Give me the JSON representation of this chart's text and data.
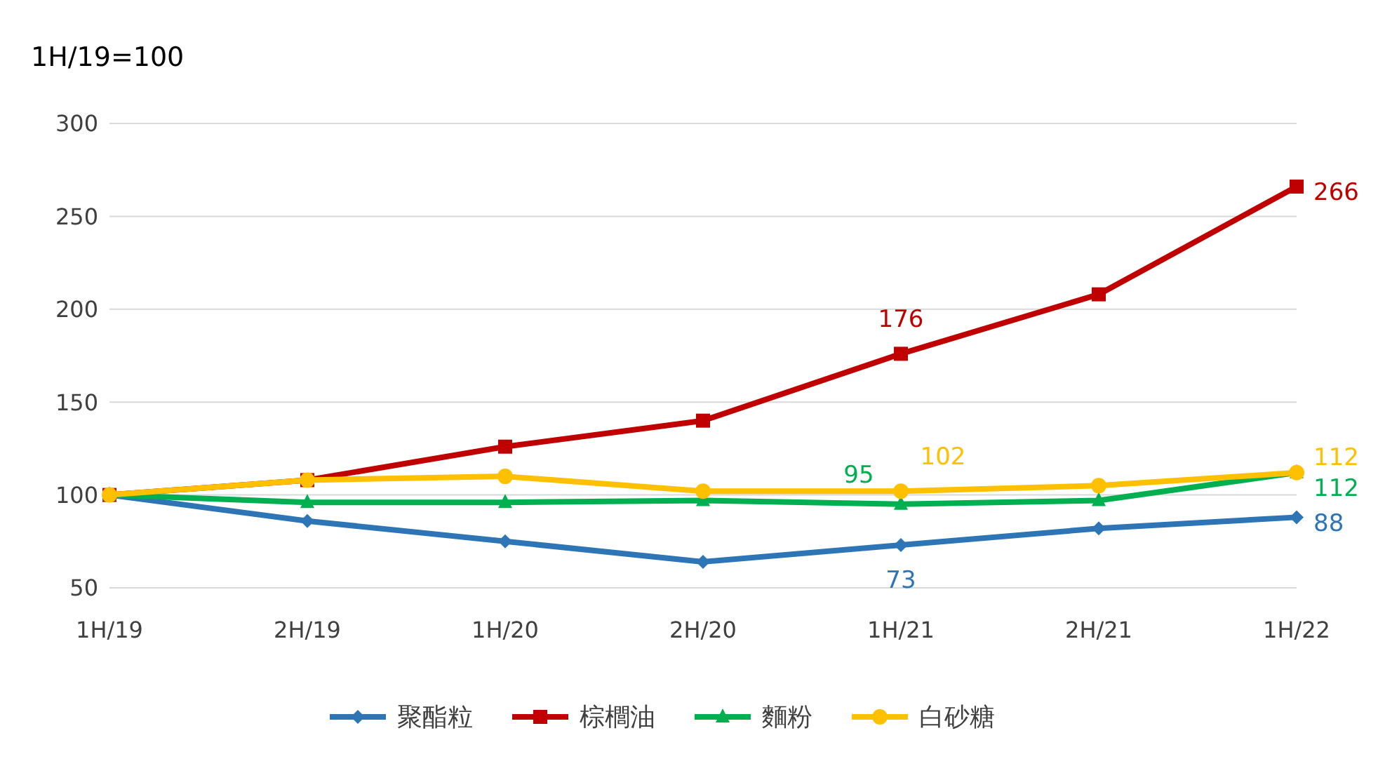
{
  "chart_data": {
    "type": "line",
    "ylabel": "1H/19=100",
    "categories": [
      "1H/19",
      "2H/19",
      "1H/20",
      "2H/20",
      "1H/21",
      "2H/21",
      "1H/22"
    ],
    "series": [
      {
        "name": "聚酯粒",
        "color": "#2e75b6",
        "marker": "diamond",
        "values": [
          100,
          86,
          75,
          64,
          73,
          82,
          88
        ],
        "value_labels": [
          null,
          null,
          null,
          null,
          "73",
          null,
          "88"
        ]
      },
      {
        "name": "棕櫚油",
        "color": "#c00000",
        "marker": "square",
        "values": [
          100,
          108,
          126,
          140,
          176,
          208,
          266
        ],
        "value_labels": [
          null,
          null,
          null,
          null,
          "176",
          null,
          "266"
        ]
      },
      {
        "name": "麵粉",
        "color": "#00b050",
        "marker": "triangle",
        "values": [
          100,
          96,
          96,
          97,
          95,
          97,
          112
        ],
        "value_labels": [
          null,
          null,
          null,
          null,
          "95",
          null,
          "112"
        ]
      },
      {
        "name": "白砂糖",
        "color": "#ffc000",
        "marker": "circle",
        "values": [
          100,
          108,
          110,
          102,
          102,
          105,
          112
        ],
        "value_labels": [
          null,
          null,
          null,
          null,
          "102",
          null,
          "112"
        ]
      }
    ],
    "ylim": [
      50,
      300
    ],
    "yticks": [
      50,
      100,
      150,
      200,
      250,
      300
    ],
    "grid": "y",
    "legend": "bottom",
    "line_style": "solid"
  }
}
